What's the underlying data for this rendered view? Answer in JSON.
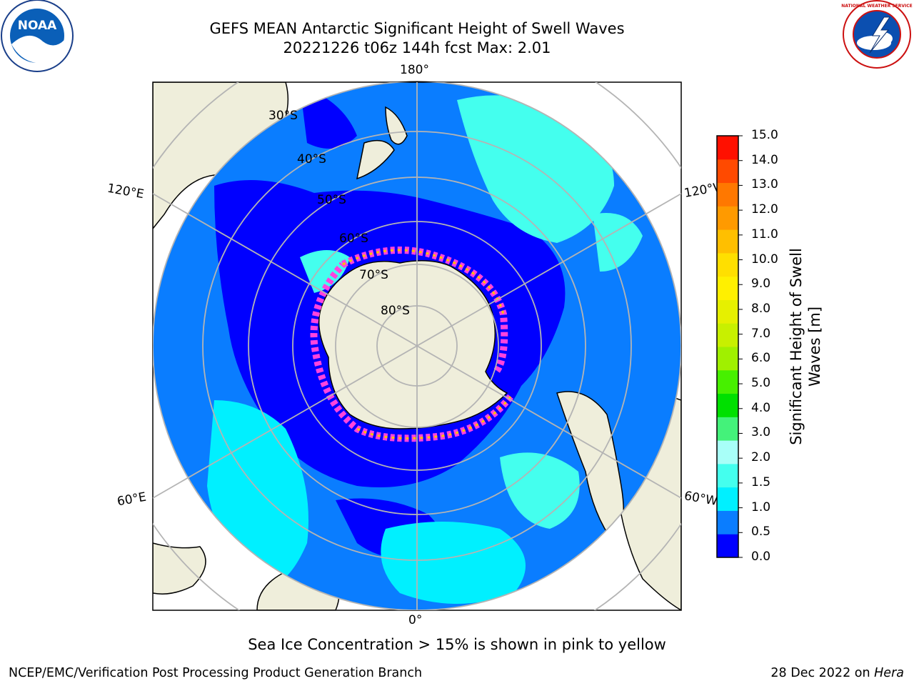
{
  "title_line1": "GEFS MEAN Antarctic Significant Height of Swell Waves",
  "title_line2": "20221226 t06z 144h fcst   Max: 2.01",
  "logos": {
    "left": "NOAA",
    "right_ring": "NATIONAL WEATHER SERVICE"
  },
  "lon_labels": [
    "180°",
    "120°E",
    "120°W",
    "60°E",
    "60°W",
    "0°"
  ],
  "lat_labels": [
    "30°S",
    "40°S",
    "50°S",
    "60°S",
    "70°S",
    "80°S"
  ],
  "colorbar": {
    "label_line1": "Significant Height of Swell",
    "label_line2": "Waves [m]",
    "ticks": [
      "15.0",
      "14.0",
      "13.0",
      "12.0",
      "11.0",
      "10.0",
      "9.0",
      "8.0",
      "7.0",
      "6.0",
      "5.0",
      "4.0",
      "3.0",
      "2.0",
      "1.5",
      "1.0",
      "0.5",
      "0.0"
    ],
    "colors": [
      "#0000ff",
      "#0a7dff",
      "#00f0ff",
      "#44ffee",
      "#a8fff8",
      "#44f27a",
      "#00e000",
      "#47f000",
      "#a0f000",
      "#c8f000",
      "#e6f000",
      "#fff000",
      "#ffdf00",
      "#ffbf00",
      "#ff9a00",
      "#ff7800",
      "#ff4a00",
      "#ff1000"
    ]
  },
  "note": "Sea Ice Concentration > 15% is shown in pink to yellow",
  "footer_left": "NCEP/EMC/Verification Post Processing Product Generation Branch",
  "footer_right_date": "28 Dec 2022 on",
  "footer_right_host": "Hera"
}
